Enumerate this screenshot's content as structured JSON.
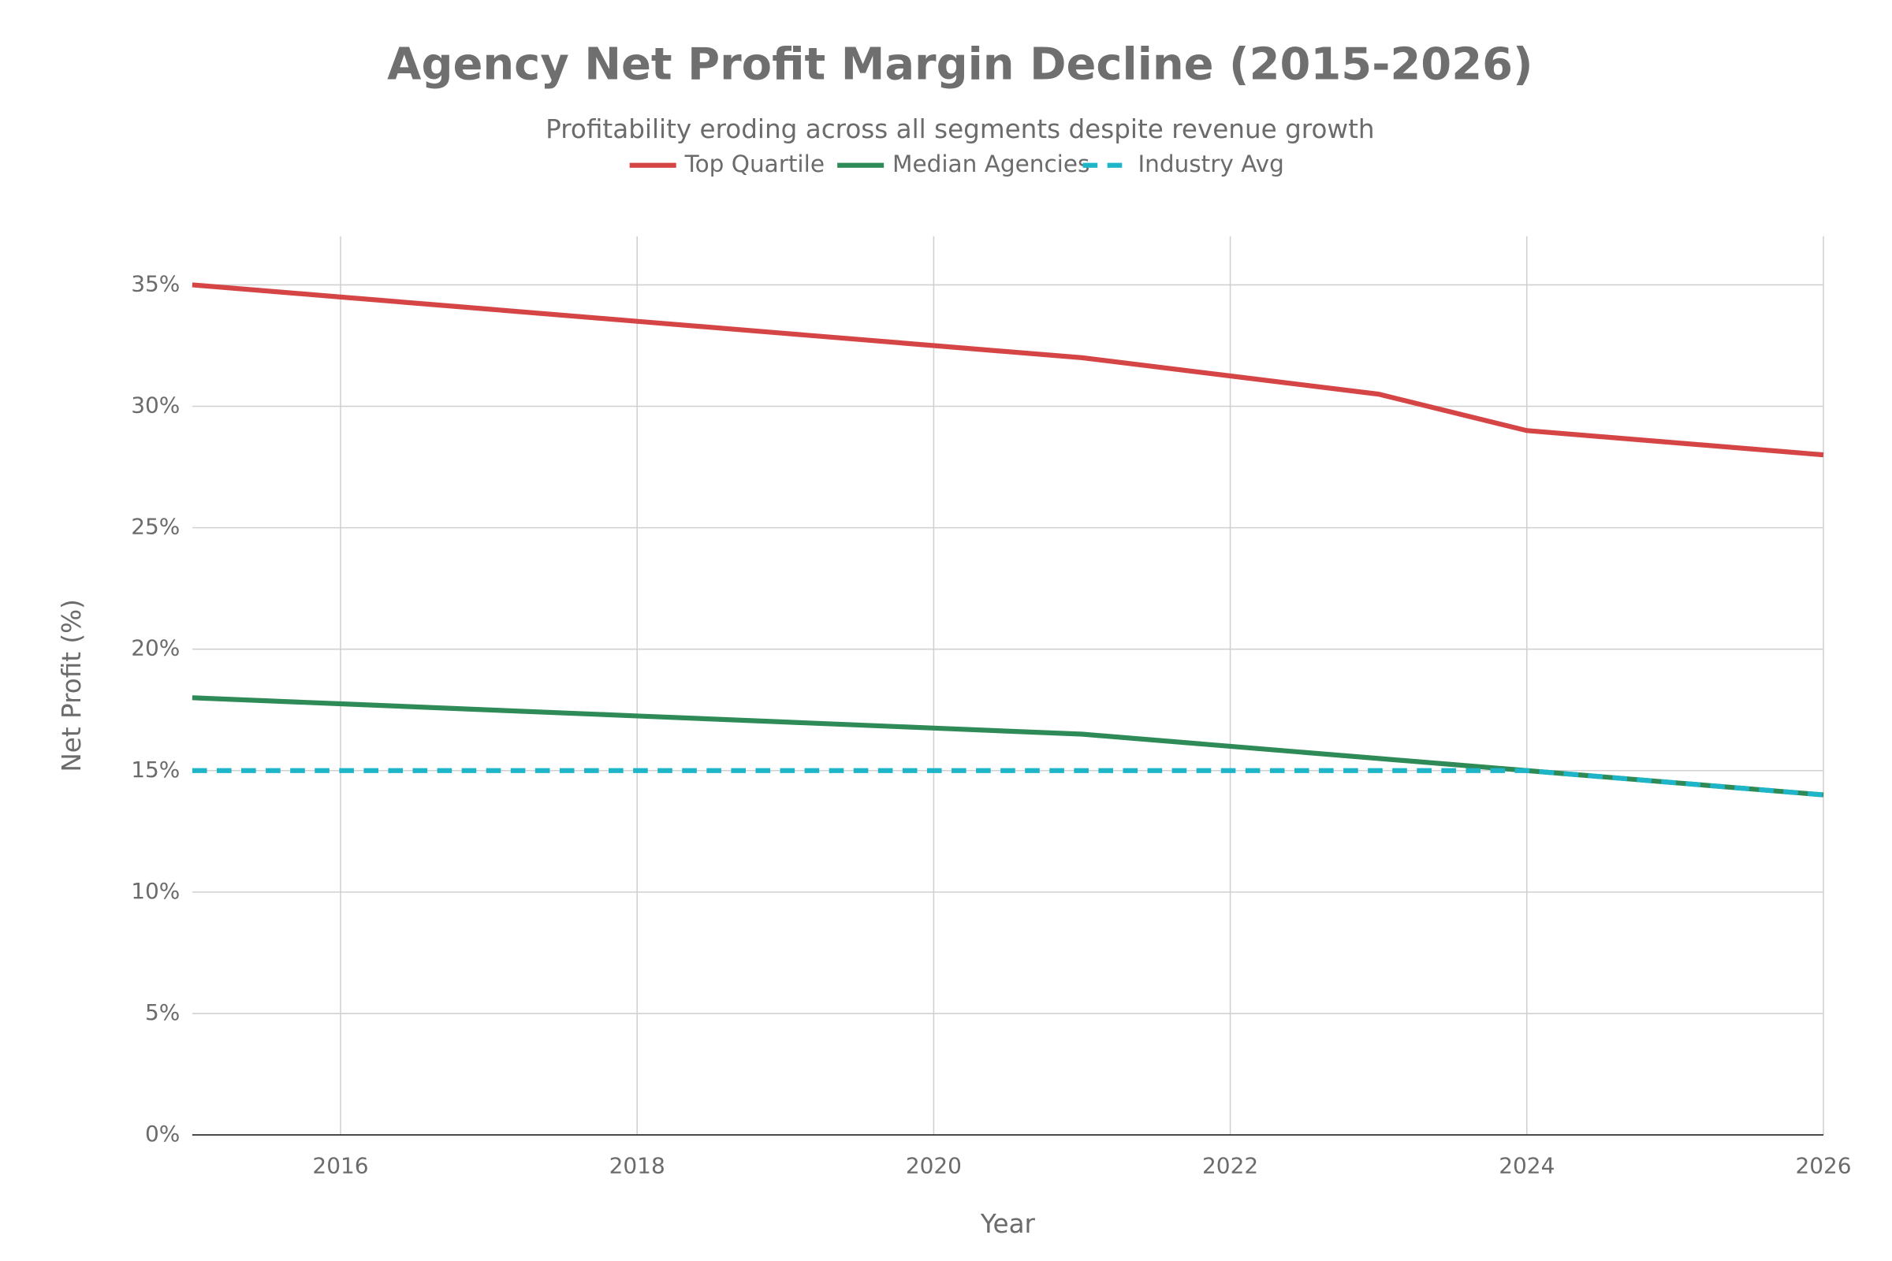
{
  "chart_data": {
    "type": "line",
    "title": "Agency Net Profit Margin Decline (2015-2026)",
    "subtitle": "Profitability eroding across all segments despite revenue growth",
    "x_label": "Year",
    "y_label": "Net Profit (%)",
    "x": [
      2015,
      2016,
      2017,
      2018,
      2019,
      2020,
      2021,
      2022,
      2023,
      2024,
      2025,
      2026
    ],
    "series": [
      {
        "name": "Top Quartile",
        "color": "#d64545",
        "dash": false,
        "values": [
          35,
          34.5,
          34,
          33.5,
          33,
          32.5,
          32,
          31.25,
          30.5,
          29,
          28.5,
          28
        ]
      },
      {
        "name": "Median Agencies",
        "color": "#2e8b57",
        "dash": false,
        "values": [
          18,
          17.75,
          17.5,
          17.25,
          17,
          16.75,
          16.5,
          16,
          15.5,
          15,
          14.5,
          14
        ]
      },
      {
        "name": "Industry Avg",
        "color": "#1fb5c9",
        "dash": true,
        "values": [
          15,
          15,
          15,
          15,
          15,
          15,
          15,
          15,
          15,
          15,
          14.5,
          14
        ]
      }
    ],
    "xlim": [
      2015,
      2026
    ],
    "xticks": [
      2016,
      2018,
      2020,
      2022,
      2024,
      2026
    ],
    "ylim": [
      0,
      37
    ],
    "yticks": [
      {
        "value": 0,
        "label": "0%"
      },
      {
        "value": 5,
        "label": "5%"
      },
      {
        "value": 10,
        "label": "10%"
      },
      {
        "value": 15,
        "label": "15%"
      },
      {
        "value": 20,
        "label": "20%"
      },
      {
        "value": 25,
        "label": "25%"
      },
      {
        "value": 30,
        "label": "30%"
      },
      {
        "value": 35,
        "label": "35%"
      }
    ],
    "grid": true,
    "legend": "top"
  }
}
